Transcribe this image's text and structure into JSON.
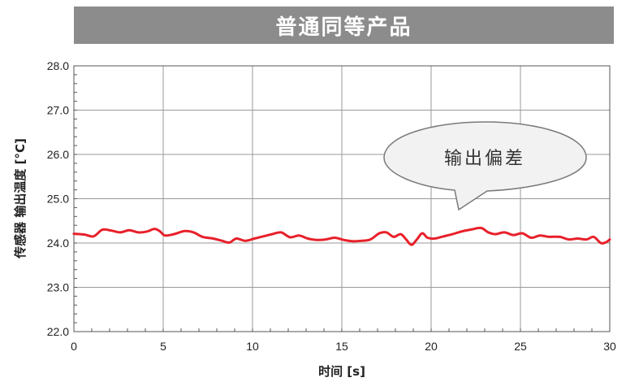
{
  "title": "普通同等产品",
  "chart_data": {
    "type": "line",
    "xlabel": "时间 [s]",
    "ylabel": "传感器 输出温度 [°C]",
    "xlim": [
      0,
      30
    ],
    "ylim": [
      22.0,
      28.0
    ],
    "x_ticks": [
      0,
      5,
      10,
      15,
      20,
      25,
      30
    ],
    "y_ticks": [
      "22.0",
      "23.0",
      "24.0",
      "25.0",
      "26.0",
      "27.0",
      "28.0"
    ],
    "grid": true,
    "annotation": "输出偏差",
    "series": [
      {
        "color": "#e8202a",
        "points": [
          [
            0.0,
            24.21
          ],
          [
            0.6,
            24.19
          ],
          [
            1.1,
            24.15
          ],
          [
            1.6,
            24.3
          ],
          [
            2.1,
            24.28
          ],
          [
            2.6,
            24.24
          ],
          [
            3.1,
            24.29
          ],
          [
            3.6,
            24.24
          ],
          [
            4.1,
            24.26
          ],
          [
            4.5,
            24.32
          ],
          [
            4.8,
            24.27
          ],
          [
            5.1,
            24.17
          ],
          [
            5.6,
            24.2
          ],
          [
            6.2,
            24.27
          ],
          [
            6.7,
            24.24
          ],
          [
            7.2,
            24.14
          ],
          [
            7.8,
            24.1
          ],
          [
            8.3,
            24.05
          ],
          [
            8.7,
            24.01
          ],
          [
            9.1,
            24.1
          ],
          [
            9.6,
            24.05
          ],
          [
            10.1,
            24.1
          ],
          [
            10.6,
            24.15
          ],
          [
            11.1,
            24.2
          ],
          [
            11.6,
            24.24
          ],
          [
            12.1,
            24.13
          ],
          [
            12.6,
            24.17
          ],
          [
            13.1,
            24.1
          ],
          [
            13.6,
            24.07
          ],
          [
            14.1,
            24.08
          ],
          [
            14.6,
            24.12
          ],
          [
            15.1,
            24.07
          ],
          [
            15.6,
            24.04
          ],
          [
            16.1,
            24.05
          ],
          [
            16.6,
            24.08
          ],
          [
            17.1,
            24.22
          ],
          [
            17.5,
            24.24
          ],
          [
            17.9,
            24.14
          ],
          [
            18.3,
            24.2
          ],
          [
            18.6,
            24.08
          ],
          [
            18.9,
            23.96
          ],
          [
            19.2,
            24.08
          ],
          [
            19.5,
            24.22
          ],
          [
            19.8,
            24.12
          ],
          [
            20.2,
            24.1
          ],
          [
            20.7,
            24.15
          ],
          [
            21.2,
            24.2
          ],
          [
            21.7,
            24.26
          ],
          [
            22.3,
            24.31
          ],
          [
            22.8,
            24.34
          ],
          [
            23.2,
            24.24
          ],
          [
            23.6,
            24.2
          ],
          [
            24.1,
            24.24
          ],
          [
            24.6,
            24.18
          ],
          [
            25.1,
            24.22
          ],
          [
            25.6,
            24.12
          ],
          [
            26.1,
            24.17
          ],
          [
            26.6,
            24.14
          ],
          [
            27.2,
            24.14
          ],
          [
            27.7,
            24.08
          ],
          [
            28.2,
            24.1
          ],
          [
            28.7,
            24.08
          ],
          [
            29.1,
            24.14
          ],
          [
            29.5,
            24.0
          ],
          [
            29.8,
            24.02
          ],
          [
            30.0,
            24.08
          ]
        ]
      }
    ]
  }
}
